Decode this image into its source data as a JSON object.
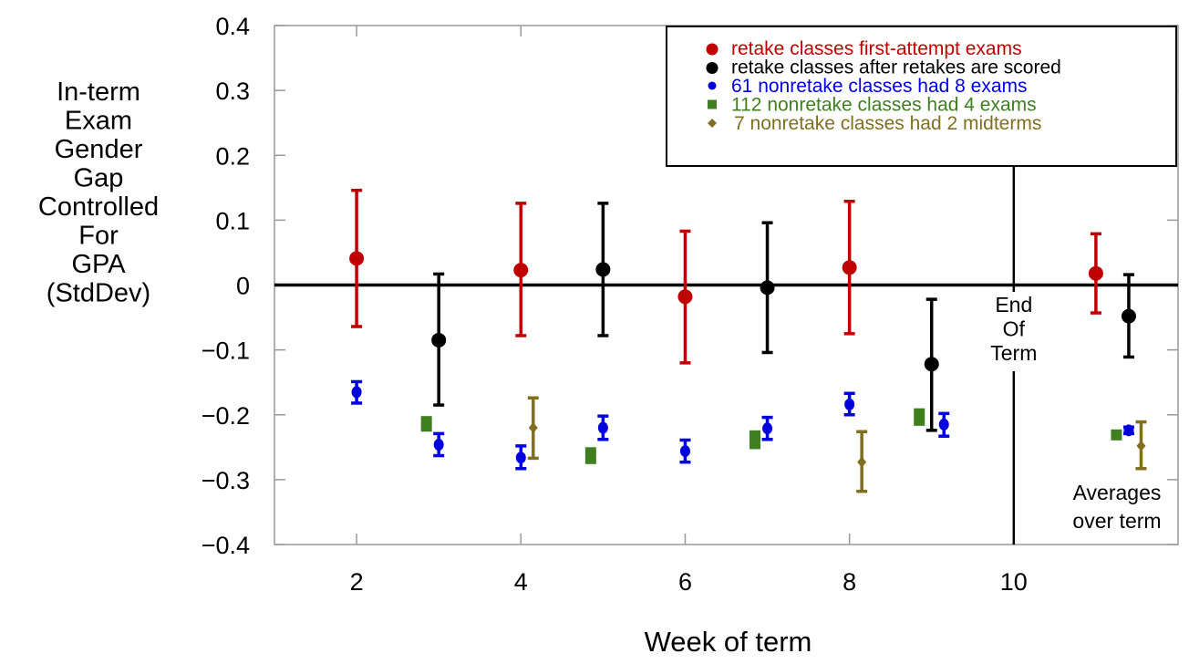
{
  "chart_data": {
    "type": "scatter",
    "title": "",
    "xlabel": "Week of term",
    "ylabel_lines": [
      "In-term",
      "Exam",
      "Gender",
      "Gap",
      "Controlled",
      "For",
      "GPA",
      "(StdDev)"
    ],
    "xlim": [
      1,
      12
    ],
    "ylim": [
      -0.4,
      0.4
    ],
    "x_ticks": [
      2,
      4,
      6,
      8,
      10
    ],
    "x_tick_labels": [
      "2",
      "4",
      "6",
      "8",
      "10"
    ],
    "y_ticks": [
      0.4,
      0.3,
      0.2,
      0.1,
      0,
      -0.1,
      -0.2,
      -0.3,
      -0.4
    ],
    "y_tick_labels": [
      "0.4",
      "0.3",
      "0.2",
      "0.1",
      "0",
      "−0.1",
      "−0.2",
      "−0.3",
      "−0.4"
    ],
    "grid": false,
    "legend_position": "top-right",
    "reference_lines": [
      {
        "orientation": "horizontal",
        "value": 0
      },
      {
        "orientation": "vertical",
        "value": 10,
        "label_lines": [
          "End",
          "Of",
          "Term"
        ]
      }
    ],
    "annotations": [
      {
        "text_lines": [
          "Averages",
          "over term"
        ],
        "near": "bottom-right"
      }
    ],
    "series": [
      {
        "name": "retake classes first-attempt exams",
        "color": "#c00000",
        "marker": "circle-large",
        "points": [
          {
            "x": 2,
            "y": 0.041,
            "lo": -0.064,
            "hi": 0.146
          },
          {
            "x": 4,
            "y": 0.023,
            "lo": -0.078,
            "hi": 0.126
          },
          {
            "x": 6,
            "y": -0.018,
            "lo": -0.12,
            "hi": 0.083
          },
          {
            "x": 8,
            "y": 0.027,
            "lo": -0.075,
            "hi": 0.129
          },
          {
            "x": 11,
            "y": 0.018,
            "lo": -0.043,
            "hi": 0.079,
            "label": "average"
          }
        ]
      },
      {
        "name": "retake classes after retakes are scored",
        "color": "#000000",
        "marker": "circle-large",
        "points": [
          {
            "x": 3,
            "y": -0.085,
            "lo": -0.185,
            "hi": 0.017
          },
          {
            "x": 5,
            "y": 0.024,
            "lo": -0.078,
            "hi": 0.126
          },
          {
            "x": 7,
            "y": -0.004,
            "lo": -0.104,
            "hi": 0.096
          },
          {
            "x": 9,
            "y": -0.122,
            "lo": -0.224,
            "hi": -0.022
          },
          {
            "x": 11.4,
            "y": -0.048,
            "lo": -0.111,
            "hi": 0.016,
            "label": "average"
          }
        ]
      },
      {
        "name": "61 nonretake classes had 8 exams",
        "color": "#0000dd",
        "marker": "circle-small",
        "points": [
          {
            "x": 2,
            "y": -0.165,
            "lo": -0.182,
            "hi": -0.149
          },
          {
            "x": 3,
            "y": -0.246,
            "lo": -0.263,
            "hi": -0.229
          },
          {
            "x": 4,
            "y": -0.266,
            "lo": -0.283,
            "hi": -0.248
          },
          {
            "x": 5,
            "y": -0.22,
            "lo": -0.238,
            "hi": -0.202
          },
          {
            "x": 6,
            "y": -0.256,
            "lo": -0.273,
            "hi": -0.239
          },
          {
            "x": 7,
            "y": -0.221,
            "lo": -0.238,
            "hi": -0.204
          },
          {
            "x": 8,
            "y": -0.184,
            "lo": -0.2,
            "hi": -0.167
          },
          {
            "x": 9.15,
            "y": -0.215,
            "lo": -0.233,
            "hi": -0.198
          },
          {
            "x": 11.4,
            "y": -0.224,
            "lo": -0.229,
            "hi": -0.219,
            "label": "average"
          }
        ]
      },
      {
        "name": "112 nonretake classes had 4 exams",
        "color": "#3f7f1f",
        "marker": "square",
        "points": [
          {
            "x": 2.85,
            "y": -0.214,
            "lo": -0.226,
            "hi": -0.202
          },
          {
            "x": 4.85,
            "y": -0.263,
            "lo": -0.276,
            "hi": -0.25
          },
          {
            "x": 6.85,
            "y": -0.24,
            "lo": -0.253,
            "hi": -0.224
          },
          {
            "x": 8.85,
            "y": -0.204,
            "lo": -0.217,
            "hi": -0.19
          },
          {
            "x": 11.25,
            "y": -0.231,
            "lo": -0.236,
            "hi": -0.226,
            "label": "average"
          }
        ]
      },
      {
        "name": "7 nonretake classes had 2 midterms",
        "color": "#7f6f1f",
        "marker": "diamond",
        "points": [
          {
            "x": 4.15,
            "y": -0.22,
            "lo": -0.267,
            "hi": -0.174
          },
          {
            "x": 8.15,
            "y": -0.273,
            "lo": -0.318,
            "hi": -0.226
          },
          {
            "x": 11.55,
            "y": -0.248,
            "lo": -0.283,
            "hi": -0.211,
            "label": "average"
          }
        ]
      }
    ]
  }
}
